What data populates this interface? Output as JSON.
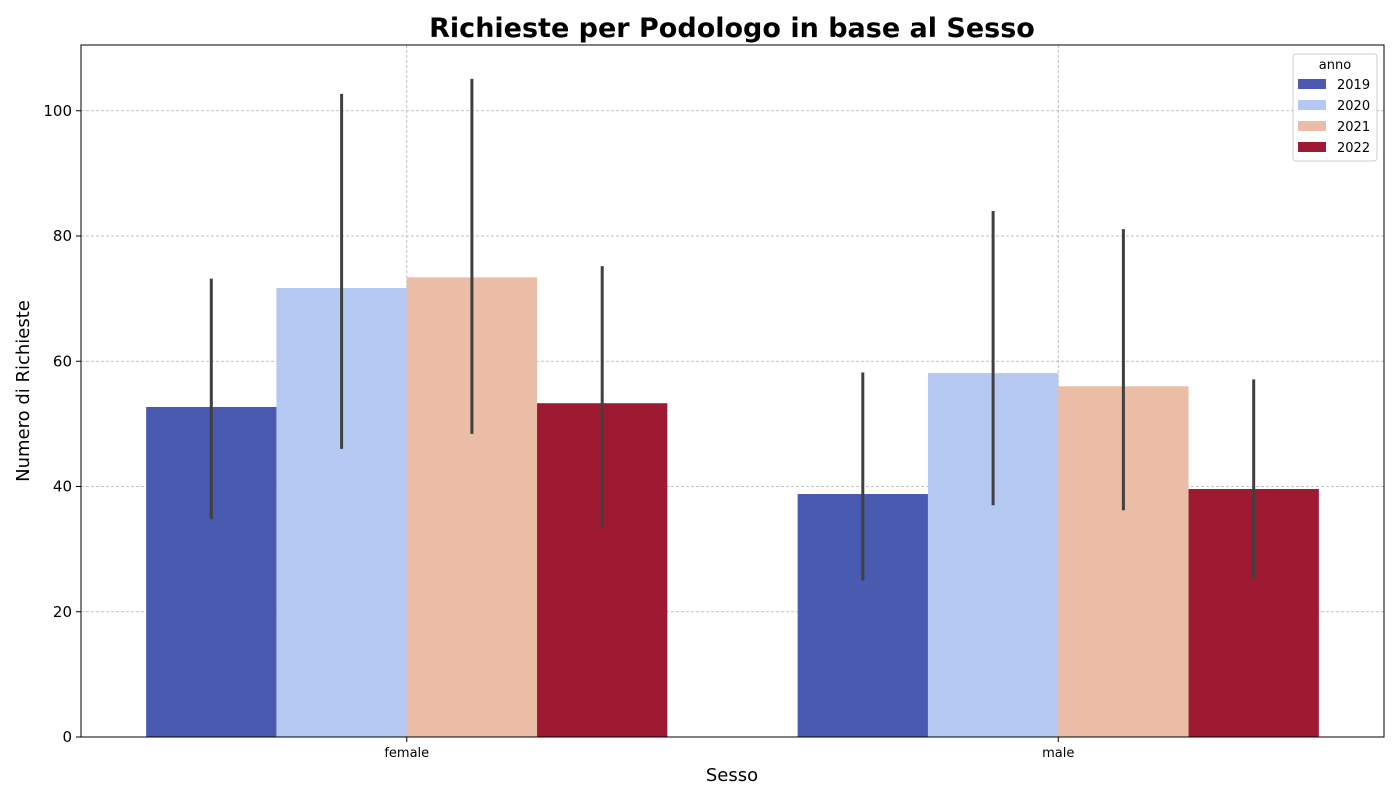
{
  "chart_data": {
    "type": "bar",
    "title": "Richieste per Podologo in base al Sesso",
    "xlabel": "Sesso",
    "ylabel": "Numero di Richieste",
    "categories": [
      "female",
      "male"
    ],
    "ylim": [
      0,
      110.5
    ],
    "yticks": [
      0,
      20,
      40,
      60,
      80,
      100
    ],
    "grid": true,
    "legend": {
      "title": "anno",
      "position": "top-right"
    },
    "series": [
      {
        "name": "2019",
        "color": "#4b5ab1",
        "values": [
          52.7,
          38.8
        ],
        "ci_low": [
          34.8,
          25.0
        ],
        "ci_high": [
          73.2,
          58.2
        ]
      },
      {
        "name": "2020",
        "color": "#b4c8f2",
        "values": [
          71.7,
          58.1
        ],
        "ci_low": [
          46.0,
          37.0
        ],
        "ci_high": [
          102.7,
          84.0
        ]
      },
      {
        "name": "2021",
        "color": "#ebbca6",
        "values": [
          73.4,
          56.0
        ],
        "ci_low": [
          48.4,
          36.2
        ],
        "ci_high": [
          105.1,
          81.1
        ]
      },
      {
        "name": "2022",
        "color": "#9e1a33",
        "values": [
          53.3,
          39.6
        ],
        "ci_low": [
          33.6,
          25.3
        ],
        "ci_high": [
          75.2,
          57.1
        ]
      }
    ]
  }
}
